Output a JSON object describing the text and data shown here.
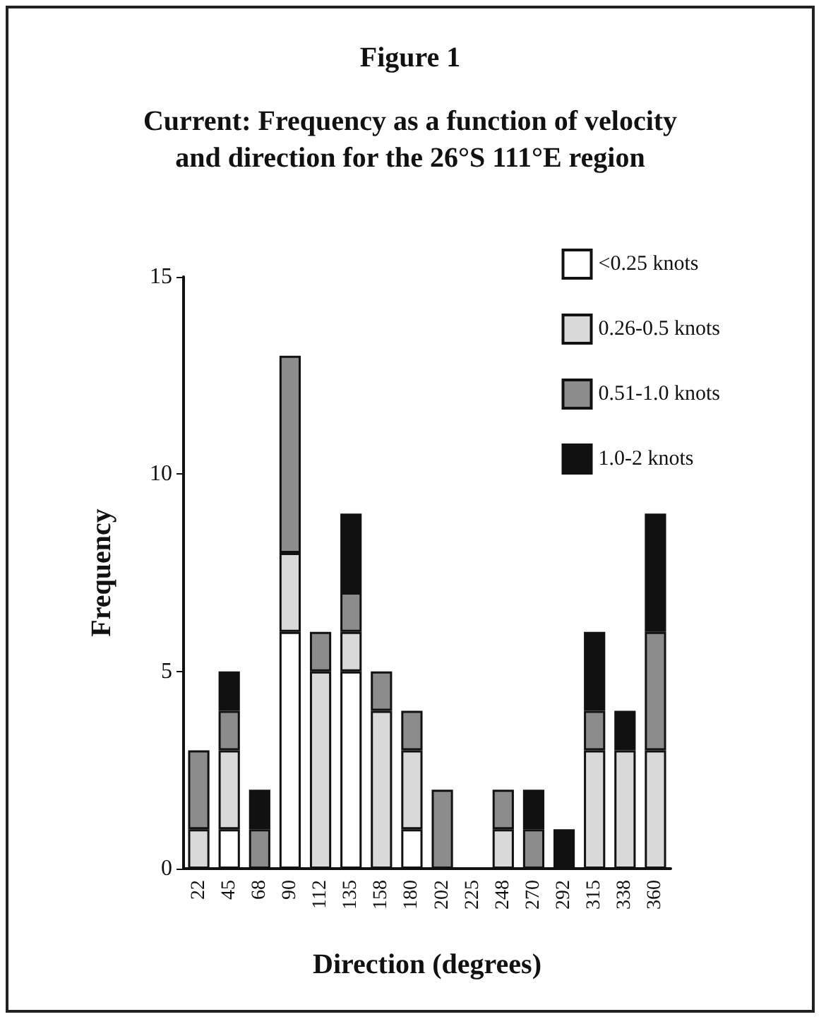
{
  "chart_data": {
    "type": "bar",
    "title": "Figure 1",
    "subtitle": "Current: Frequency as a function of velocity\nand direction for the 26°S 111°E region",
    "xlabel": "Direction (degrees)",
    "ylabel": "Frequency",
    "categories": [
      "22",
      "45",
      "68",
      "90",
      "112",
      "135",
      "158",
      "180",
      "202",
      "225",
      "248",
      "270",
      "292",
      "315",
      "338",
      "360"
    ],
    "stacked": true,
    "legend": "top right",
    "grid": false,
    "ylim": [
      0,
      15
    ],
    "yticks": [
      0,
      5,
      10,
      15
    ],
    "series": [
      {
        "name": "<0.25 knots",
        "color": "#ffffff",
        "values": [
          0,
          1,
          0,
          6,
          0,
          5,
          0,
          1,
          0,
          0,
          0,
          0,
          0,
          0,
          0,
          0
        ]
      },
      {
        "name": "0.26-0.5 knots",
        "color": "#d9d9d9",
        "values": [
          1,
          2,
          0,
          2,
          5,
          1,
          4,
          2,
          0,
          0,
          1,
          0,
          0,
          3,
          3,
          3
        ]
      },
      {
        "name": "0.51-1.0 knots",
        "color": "#8c8c8c",
        "values": [
          2,
          1,
          1,
          5,
          1,
          1,
          1,
          1,
          2,
          0,
          1,
          1,
          0,
          1,
          0,
          3
        ]
      },
      {
        "name": "1.0-2 knots",
        "color": "#111111",
        "values": [
          0,
          1,
          1,
          0,
          0,
          2,
          0,
          0,
          0,
          0,
          0,
          1,
          1,
          2,
          1,
          3
        ]
      }
    ]
  }
}
